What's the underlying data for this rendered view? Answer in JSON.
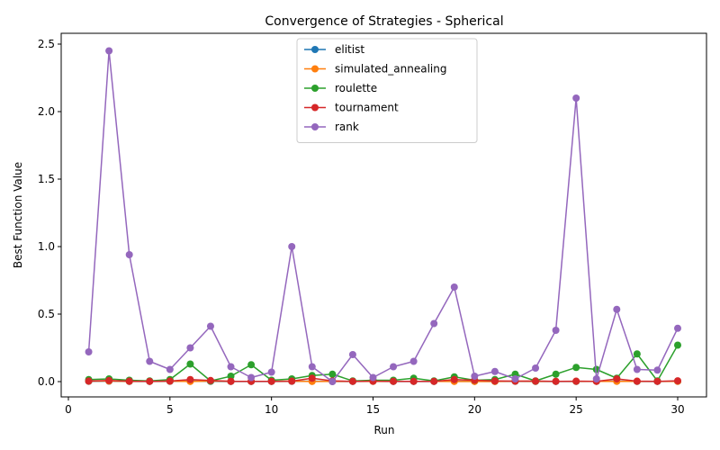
{
  "chart_data": {
    "type": "line",
    "title": "Convergence of Strategies - Spherical",
    "xlabel": "Run",
    "ylabel": "Best Function Value",
    "xlim": [
      0.5,
      30.0
    ],
    "ylim": [
      -0.12,
      2.58
    ],
    "xticks": [
      0,
      5,
      10,
      15,
      20,
      25,
      30
    ],
    "yticks": [
      0.0,
      0.5,
      1.0,
      1.5,
      2.0,
      2.5
    ],
    "grid": false,
    "legend_position": "top-center",
    "x": [
      1,
      2,
      3,
      4,
      5,
      6,
      7,
      8,
      9,
      10,
      11,
      12,
      13,
      14,
      15,
      16,
      17,
      18,
      19,
      20,
      21,
      22,
      23,
      24,
      25,
      26,
      27,
      28,
      29,
      30
    ],
    "series": [
      {
        "name": "elitist",
        "color": "#1f77b4",
        "values": [
          0.002,
          0.003,
          0.001,
          0.001,
          0.002,
          0.004,
          0.002,
          0.001,
          0.001,
          0.001,
          0.002,
          0.003,
          0.001,
          0.001,
          0.002,
          0.001,
          0.001,
          0.001,
          0.003,
          0.002,
          0.001,
          0.002,
          0.001,
          0.001,
          0.001,
          0.002,
          0.003,
          0.001,
          0.001,
          0.002
        ]
      },
      {
        "name": "simulated_annealing",
        "color": "#ff7f0e",
        "values": [
          0.003,
          0.004,
          0.002,
          0.002,
          0.003,
          0.001,
          0.004,
          0.002,
          0.002,
          0.002,
          0.003,
          0.001,
          0.002,
          0.002,
          0.002,
          0.002,
          0.002,
          0.002,
          0.001,
          0.001,
          0.001,
          0.003,
          0.002,
          0.002,
          0.002,
          0.002,
          0.002,
          0.002,
          0.002,
          0.002
        ]
      },
      {
        "name": "roulette",
        "color": "#2ca02c",
        "values": [
          0.015,
          0.02,
          0.01,
          0.005,
          0.015,
          0.13,
          0.005,
          0.04,
          0.125,
          0.01,
          0.02,
          0.045,
          0.055,
          0.005,
          0.01,
          0.01,
          0.025,
          0.005,
          0.035,
          0.01,
          0.015,
          0.055,
          0.005,
          0.055,
          0.105,
          0.09,
          0.025,
          0.205,
          0.005,
          0.27
        ]
      },
      {
        "name": "tournament",
        "color": "#d62728",
        "values": [
          0.004,
          0.008,
          0.003,
          0.002,
          0.004,
          0.015,
          0.008,
          0.002,
          0.002,
          0.002,
          0.003,
          0.025,
          0.005,
          0.002,
          0.003,
          0.002,
          0.002,
          0.002,
          0.015,
          0.01,
          0.005,
          0.003,
          0.004,
          0.002,
          0.003,
          0.002,
          0.02,
          0.003,
          0.002,
          0.006
        ]
      },
      {
        "name": "rank",
        "color": "#9467bd",
        "values": [
          0.22,
          2.45,
          0.94,
          0.15,
          0.09,
          0.25,
          0.41,
          0.11,
          0.03,
          0.07,
          1.0,
          0.11,
          0.0,
          0.2,
          0.03,
          0.11,
          0.15,
          0.43,
          0.7,
          0.04,
          0.075,
          0.02,
          0.1,
          0.38,
          2.1,
          0.02,
          0.535,
          0.09,
          0.085,
          0.395
        ]
      }
    ]
  }
}
